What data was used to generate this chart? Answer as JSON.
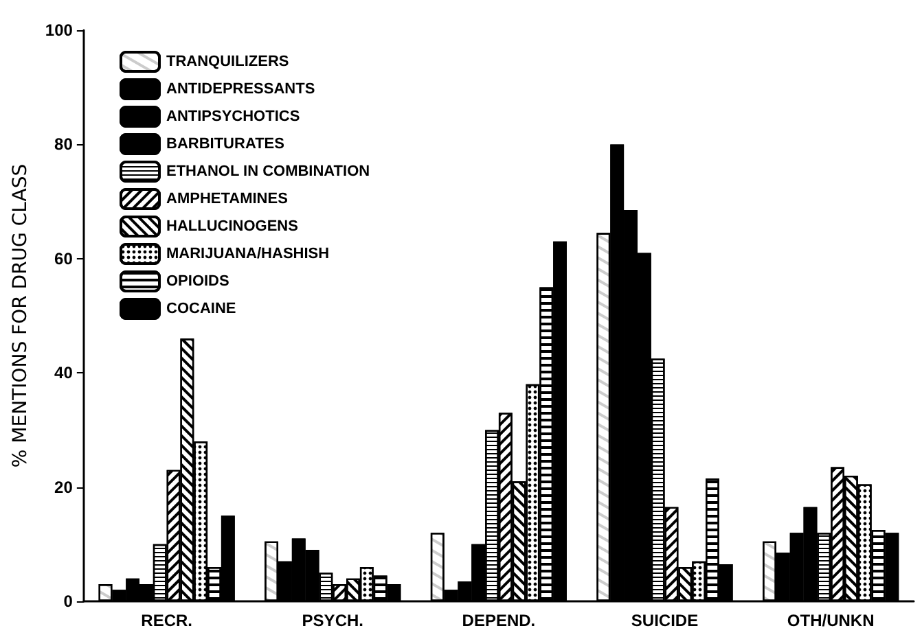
{
  "chart_data": {
    "type": "bar",
    "ylabel": "% MENTIONS FOR DRUG CLASS",
    "categories": [
      "RECR.",
      "PSYCH.",
      "DEPEND.",
      "SUICIDE",
      "OTH/UNKN"
    ],
    "ylim": [
      0,
      100
    ],
    "yticks": [
      0,
      20,
      40,
      60,
      80,
      100
    ],
    "grid": false,
    "legend": "top left",
    "series": [
      {
        "name": "TRANQUILIZERS",
        "color": "#ffffff",
        "values": [
          3,
          10.5,
          12,
          64.5,
          10.5
        ]
      },
      {
        "name": "ANTIDEPRESSANTS",
        "color": "#000000",
        "values": [
          2,
          7,
          2,
          80,
          8.5
        ]
      },
      {
        "name": "ANTIPSYCHOTICS",
        "color": "#000000",
        "values": [
          4,
          11,
          3.5,
          68.5,
          12
        ]
      },
      {
        "name": "BARBITURATES",
        "color": "#000000",
        "values": [
          3,
          9,
          10,
          61,
          16.5
        ]
      },
      {
        "name": "ETHANOL IN COMBINATION",
        "color": "#ffffff",
        "values": [
          10,
          5,
          30,
          42.5,
          12
        ]
      },
      {
        "name": "AMPHETAMINES",
        "color": "#ffffff",
        "values": [
          23,
          3,
          33,
          16.5,
          23.5
        ]
      },
      {
        "name": "HALLUCINOGENS",
        "color": "#ffffff",
        "values": [
          46,
          4,
          21,
          6,
          22
        ]
      },
      {
        "name": "MARIJUANA/HASHISH",
        "color": "#ffffff",
        "values": [
          28,
          6,
          38,
          7,
          20.5
        ]
      },
      {
        "name": "OPIOIDS",
        "color": "#ffffff",
        "values": [
          6,
          4.5,
          55,
          21.5,
          12.5
        ]
      },
      {
        "name": "COCAINE",
        "color": "#000000",
        "values": [
          15,
          3,
          63,
          6.5,
          12
        ]
      }
    ]
  }
}
